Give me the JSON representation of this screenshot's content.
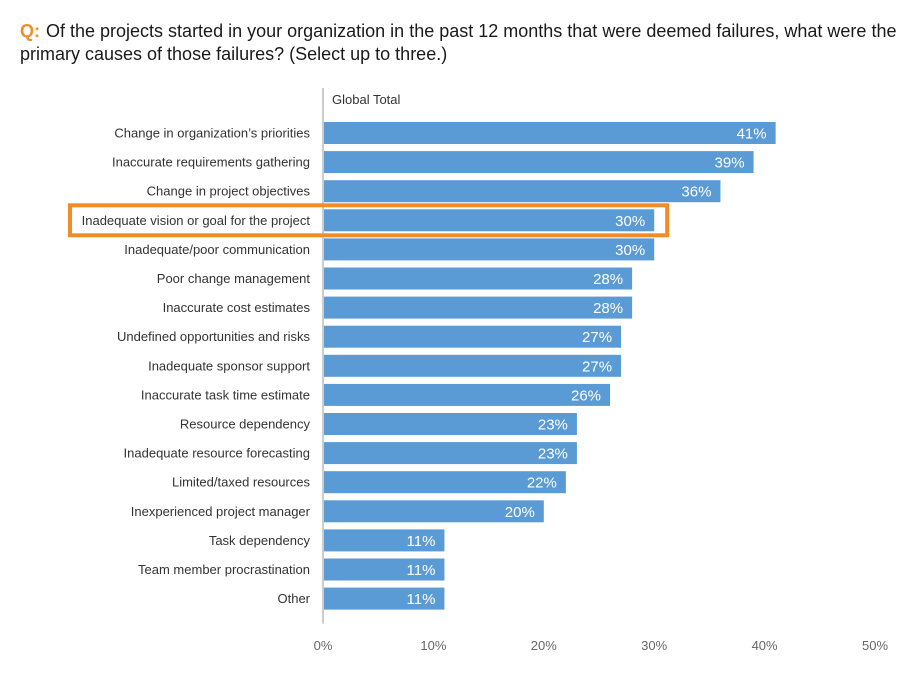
{
  "question": {
    "prefix": "Q:",
    "text": "Of the projects started in your organization in the past 12 months that were deemed failures, what were the primary causes of those failures? (Select up to three.)"
  },
  "colors": {
    "bar": "#5b9bd5",
    "highlight": "#f28c28",
    "axis": "#999999",
    "label": "#333333",
    "tick": "#666666",
    "prefix": "#f28c28"
  },
  "chart_data": {
    "type": "bar",
    "orientation": "horizontal",
    "series_header": "Global Total",
    "categories": [
      "Change in organization’s priorities",
      "Inaccurate requirements gathering",
      "Change in project objectives",
      "Inadequate vision or goal for the project",
      "Inadequate/poor communication",
      "Poor change management",
      "Inaccurate cost estimates",
      "Undefined opportunities and risks",
      "Inadequate sponsor support",
      "Inaccurate task time estimate",
      "Resource dependency",
      "Inadequate resource forecasting",
      "Limited/taxed resources",
      "Inexperienced project manager",
      "Task dependency",
      "Team member procrastination",
      "Other"
    ],
    "values": [
      41,
      39,
      36,
      30,
      30,
      28,
      28,
      27,
      27,
      26,
      23,
      23,
      22,
      20,
      11,
      11,
      11
    ],
    "value_labels": [
      "41%",
      "39%",
      "36%",
      "30%",
      "30%",
      "28%",
      "28%",
      "27%",
      "27%",
      "26%",
      "23%",
      "23%",
      "22%",
      "20%",
      "11%",
      "11%",
      "11%"
    ],
    "highlighted_category": "Inadequate vision or goal for the project",
    "xlim": [
      0,
      50
    ],
    "xticks": [
      0,
      10,
      20,
      30,
      40,
      50
    ],
    "xtick_labels": [
      "0%",
      "10%",
      "20%",
      "30%",
      "40%",
      "50%"
    ],
    "grid": false
  }
}
